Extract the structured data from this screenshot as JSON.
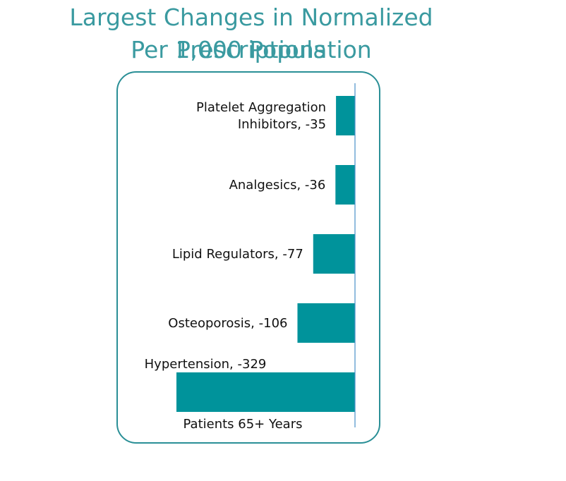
{
  "title_line1": "Largest Changes in Normalized Prescriptions",
  "title_line2": "Per 1,000 Population",
  "colors": {
    "bar": "#00939b",
    "axis": "#4a90c8",
    "title": "#3a9aa0",
    "frame": "#2a8f96"
  },
  "chart_data": {
    "type": "bar",
    "orientation": "horizontal",
    "title": "Largest Changes in Normalized Prescriptions Per 1,000 Population",
    "xlabel": "Patients 65+ Years",
    "ylabel": "",
    "xlim": [
      -329,
      0
    ],
    "categories": [
      "Platelet Aggregation Inhibitors",
      "Analgesics",
      "Lipid Regulators",
      "Osteoporosis",
      "Hypertension"
    ],
    "values": [
      -35,
      -36,
      -77,
      -106,
      -329
    ],
    "data_labels": [
      [
        "Platelet Aggregation",
        "Inhibitors, -35"
      ],
      [
        "Analgesics, -36"
      ],
      [
        "Lipid Regulators, -77"
      ],
      [
        "Osteoporosis, -106"
      ],
      [
        "Hypertension, -329"
      ]
    ]
  }
}
